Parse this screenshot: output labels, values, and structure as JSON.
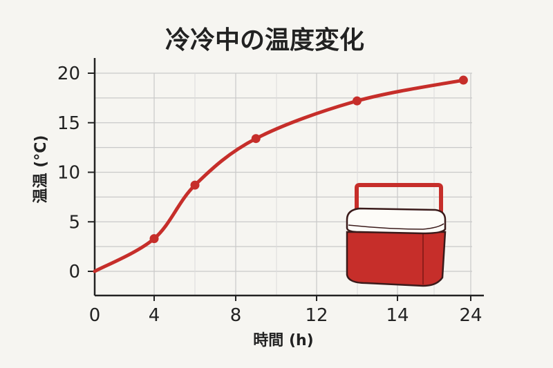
{
  "chart_data": {
    "type": "line",
    "title": "冷冷中の温度変化",
    "xlabel": "時間 (h)",
    "ylabel": "温温 (°C)",
    "x_ticks": [
      "0",
      "4",
      "8",
      "12",
      "14",
      "24"
    ],
    "y_ticks": [
      "0",
      "5",
      "10",
      "15",
      "20"
    ],
    "ylim": [
      0,
      20
    ],
    "grid": true,
    "series": [
      {
        "color": "#c62e2a",
        "points": [
          {
            "x": "0",
            "y": 0
          },
          {
            "x": "4",
            "y": 3.3
          },
          {
            "x": "6",
            "y": 8.7
          },
          {
            "x": "9",
            "y": 13.4
          },
          {
            "x": "13",
            "y": 17.2
          },
          {
            "x": "23",
            "y": 19.3
          }
        ]
      }
    ],
    "annotations": [
      {
        "icon": "cooler-box-icon",
        "color": "#c62e2a"
      }
    ]
  }
}
